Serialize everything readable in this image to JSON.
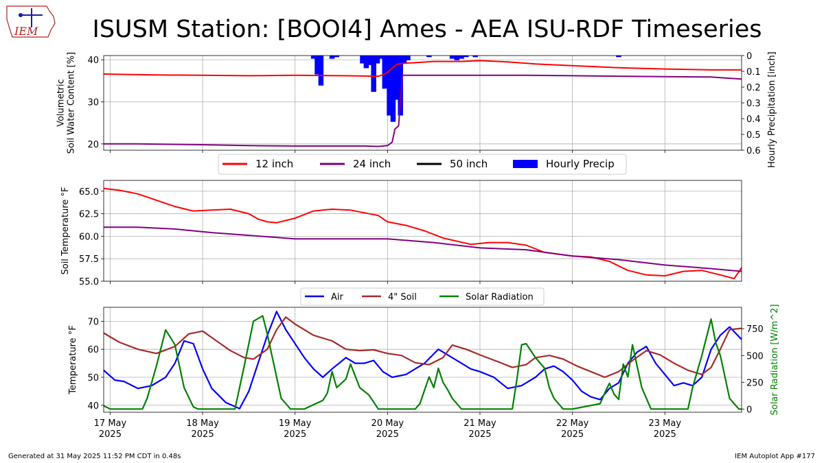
{
  "page": {
    "logo_text": "IEM",
    "title": "ISUSM Station: [BOOI4] Ames - AEA ISU-RDF Timeseries",
    "footer_left": "Generated at 31 May 2025 11:52 PM CDT in 0.48s",
    "footer_right": "IEM Autoplot App #177"
  },
  "colors": {
    "red": "#ff0000",
    "purple": "#800080",
    "black": "#000000",
    "blue_precip": "#0000ff",
    "air": "#0000ff",
    "soil4": "#a52a2a",
    "solar": "#008000"
  },
  "chart_data": [
    {
      "type": "line",
      "id": "soil-moisture",
      "ylabel": "Volumetric\nSoil Water Content [%]",
      "y2label": "Hourly Precipitation [inch]",
      "ylim": [
        18.5,
        41
      ],
      "yticks": [
        20,
        30,
        40
      ],
      "y2lim": [
        0.6,
        0
      ],
      "y2ticks": [
        "0",
        "0.1",
        "0.2",
        "0.3",
        "0.4",
        "0.5",
        "0.6"
      ],
      "y2tick_values": [
        0,
        0.1,
        0.2,
        0.3,
        0.4,
        0.5,
        0.6
      ],
      "grid": true,
      "legend_position": "below",
      "x_day_range": [
        16.93,
        23.83
      ],
      "series": [
        {
          "name": "12 inch",
          "color_key": "red",
          "x": [
            16.93,
            17.5,
            18.5,
            19.0,
            19.5,
            19.9,
            19.95,
            20.0,
            20.05,
            20.1,
            20.15,
            20.2,
            20.3,
            20.5,
            20.8,
            21.0,
            21.3,
            21.6,
            22.0,
            22.5,
            23.0,
            23.5,
            23.83
          ],
          "y": [
            36.6,
            36.4,
            36.2,
            36.3,
            36.2,
            36.1,
            36.4,
            37.0,
            38.0,
            38.9,
            39.1,
            39.2,
            39.3,
            39.6,
            39.6,
            39.8,
            39.5,
            39.0,
            38.6,
            38.1,
            37.8,
            37.6,
            37.6
          ]
        },
        {
          "name": "24 inch",
          "color_key": "purple",
          "x": [
            16.93,
            17.3,
            18.0,
            18.5,
            19.0,
            19.5,
            19.75,
            19.9,
            20.0,
            20.05,
            20.08,
            20.12,
            20.16,
            20.2,
            20.3,
            20.5,
            21.0,
            21.5,
            22.0,
            22.5,
            23.0,
            23.5,
            23.7,
            23.83
          ],
          "y": [
            20.0,
            20.0,
            19.8,
            19.6,
            19.5,
            19.5,
            19.5,
            19.4,
            19.6,
            20.4,
            23.5,
            24.3,
            36.3,
            36.3,
            36.3,
            36.3,
            36.3,
            36.3,
            36.2,
            36.1,
            36.0,
            35.9,
            35.6,
            35.4
          ]
        },
        {
          "name": "50 inch",
          "color_key": "black",
          "x": [],
          "y": []
        }
      ],
      "precip": {
        "name": "Hourly Precip",
        "x": [
          19.2,
          19.24,
          19.28,
          19.4,
          19.45,
          19.73,
          19.77,
          19.81,
          19.85,
          19.89,
          19.93,
          19.97,
          20.02,
          20.06,
          20.1,
          20.14,
          20.18,
          20.22,
          20.45,
          20.7,
          20.75,
          20.8,
          20.85,
          20.95,
          22.5
        ],
        "y": [
          0.02,
          0.12,
          0.19,
          0.02,
          0.01,
          0.05,
          0.08,
          0.06,
          0.23,
          0.05,
          0.02,
          0.21,
          0.38,
          0.42,
          0.28,
          0.38,
          0.05,
          0.03,
          0.01,
          0.02,
          0.03,
          0.02,
          0.01,
          0.01,
          0.01
        ]
      }
    },
    {
      "type": "line",
      "id": "soil-temperature",
      "ylabel": "Soil Temperature °F",
      "ylim": [
        55,
        66.2
      ],
      "yticks": [
        "55.0",
        "57.5",
        "60.0",
        "62.5",
        "65.0"
      ],
      "ytick_values": [
        55,
        57.5,
        60,
        62.5,
        65
      ],
      "grid": true,
      "series": [
        {
          "name": "12 inch",
          "color_key": "red",
          "x": [
            16.93,
            17.1,
            17.3,
            17.5,
            17.7,
            17.9,
            18.1,
            18.3,
            18.5,
            18.6,
            18.7,
            18.8,
            19.0,
            19.2,
            19.4,
            19.6,
            19.9,
            20.0,
            20.2,
            20.4,
            20.6,
            20.9,
            21.1,
            21.3,
            21.5,
            21.7,
            22.0,
            22.2,
            22.4,
            22.6,
            22.8,
            23.0,
            23.2,
            23.4,
            23.6,
            23.75,
            23.83
          ],
          "y": [
            65.3,
            65.1,
            64.7,
            64.0,
            63.3,
            62.8,
            62.9,
            63.0,
            62.5,
            61.9,
            61.6,
            61.5,
            62.0,
            62.8,
            63.0,
            62.9,
            62.3,
            61.6,
            61.2,
            60.6,
            59.8,
            59.1,
            59.3,
            59.3,
            59.0,
            58.2,
            57.8,
            57.7,
            57.2,
            56.2,
            55.7,
            55.6,
            56.1,
            56.2,
            55.7,
            55.3,
            56.5
          ]
        },
        {
          "name": "24 inch",
          "color_key": "purple",
          "x": [
            16.93,
            17.3,
            17.7,
            18.1,
            18.5,
            19.0,
            19.5,
            20.0,
            20.5,
            21.0,
            21.5,
            22.0,
            22.5,
            23.0,
            23.5,
            23.83
          ],
          "y": [
            61.0,
            61.0,
            60.8,
            60.4,
            60.1,
            59.7,
            59.7,
            59.7,
            59.3,
            58.7,
            58.5,
            57.8,
            57.4,
            56.8,
            56.4,
            56.1
          ]
        }
      ]
    },
    {
      "type": "line",
      "id": "air-soil-solar",
      "ylabel": "Temperature °F",
      "y2label": "Solar Radiation [W/m^2]",
      "ylim": [
        37.5,
        75
      ],
      "yticks": [
        40,
        50,
        60,
        70
      ],
      "y2lim": [
        -30,
        950
      ],
      "y2ticks": [
        0,
        250,
        500,
        750
      ],
      "grid": true,
      "legend_position": "top-center",
      "xtick_labels": [
        "17 May\n2025",
        "18 May\n2025",
        "19 May\n2025",
        "20 May\n2025",
        "21 May\n2025",
        "22 May\n2025",
        "23 May\n2025"
      ],
      "xtick_values": [
        17,
        18,
        19,
        20,
        21,
        22,
        23
      ],
      "series": [
        {
          "name": "Air",
          "color_key": "air",
          "x": [
            16.93,
            17.05,
            17.15,
            17.3,
            17.45,
            17.6,
            17.7,
            17.8,
            17.9,
            18.0,
            18.1,
            18.25,
            18.4,
            18.5,
            18.6,
            18.7,
            18.8,
            18.9,
            19.0,
            19.1,
            19.2,
            19.3,
            19.4,
            19.55,
            19.65,
            19.75,
            19.85,
            19.95,
            20.05,
            20.2,
            20.3,
            20.4,
            20.55,
            20.7,
            20.8,
            20.9,
            21.0,
            21.15,
            21.3,
            21.45,
            21.6,
            21.7,
            21.8,
            21.9,
            22.0,
            22.1,
            22.2,
            22.3,
            22.4,
            22.5,
            22.6,
            22.7,
            22.8,
            22.9,
            23.0,
            23.1,
            23.2,
            23.3,
            23.4,
            23.5,
            23.6,
            23.7,
            23.83
          ],
          "y": [
            52.5,
            49,
            48.5,
            46,
            47,
            50,
            55,
            63,
            62,
            53,
            46,
            41,
            38.8,
            45,
            55,
            65,
            73.5,
            67,
            62,
            57,
            53,
            50,
            53,
            57,
            55,
            55,
            56,
            52,
            50,
            51,
            53,
            55,
            60,
            57,
            55,
            53,
            52,
            50,
            46,
            47,
            50,
            53,
            54,
            52,
            49,
            45,
            43,
            42,
            46,
            48,
            55,
            59,
            61,
            55,
            51,
            47,
            48,
            47,
            50,
            60,
            65,
            68,
            63.5
          ]
        },
        {
          "name": "4\" Soil",
          "color_key": "soil4",
          "x": [
            16.93,
            17.1,
            17.3,
            17.5,
            17.7,
            17.85,
            18.0,
            18.15,
            18.3,
            18.45,
            18.55,
            18.7,
            18.8,
            18.9,
            19.0,
            19.2,
            19.4,
            19.55,
            19.7,
            19.85,
            20.0,
            20.15,
            20.3,
            20.45,
            20.6,
            20.7,
            20.85,
            21.0,
            21.2,
            21.35,
            21.5,
            21.6,
            21.75,
            21.9,
            22.05,
            22.2,
            22.35,
            22.5,
            22.65,
            22.8,
            22.95,
            23.1,
            23.25,
            23.4,
            23.5,
            23.6,
            23.7,
            23.83
          ],
          "y": [
            65.8,
            62.5,
            60,
            58.5,
            61,
            65.5,
            66.5,
            63,
            59.5,
            57,
            56.5,
            60,
            67,
            71.5,
            69,
            65,
            63,
            60,
            59.5,
            59.8,
            58.5,
            57.8,
            55.2,
            54.5,
            57,
            61.5,
            60,
            58,
            55.5,
            53.5,
            54.5,
            57,
            57.8,
            56.5,
            54,
            52,
            50,
            52,
            56,
            59.5,
            58,
            55,
            52.5,
            51,
            53.5,
            60,
            67,
            67.5
          ]
        },
        {
          "name": "Solar Radiation",
          "color_key": "solar",
          "axis": "y2",
          "x": [
            16.93,
            17.0,
            17.2,
            17.35,
            17.4,
            17.5,
            17.6,
            17.7,
            17.75,
            17.8,
            17.9,
            17.95,
            18.0,
            18.2,
            18.35,
            18.45,
            18.55,
            18.65,
            18.7,
            18.75,
            18.8,
            18.85,
            18.95,
            19.05,
            19.1,
            19.3,
            19.35,
            19.4,
            19.45,
            19.55,
            19.6,
            19.7,
            19.8,
            19.9,
            20.0,
            20.3,
            20.35,
            20.45,
            20.5,
            20.55,
            20.6,
            20.65,
            20.7,
            20.8,
            20.85,
            21.0,
            21.2,
            21.35,
            21.4,
            21.45,
            21.5,
            21.6,
            21.7,
            21.75,
            21.8,
            21.9,
            21.95,
            22.0,
            22.3,
            22.35,
            22.4,
            22.45,
            22.5,
            22.55,
            22.6,
            22.65,
            22.7,
            22.75,
            22.8,
            22.85,
            22.95,
            23.0,
            23.25,
            23.3,
            23.4,
            23.5,
            23.55,
            23.6,
            23.65,
            23.7,
            23.75,
            23.8,
            23.83
          ],
          "y": [
            30,
            0,
            0,
            0,
            100,
            400,
            740,
            600,
            400,
            200,
            20,
            0,
            0,
            0,
            0,
            400,
            820,
            870,
            700,
            500,
            300,
            100,
            0,
            0,
            0,
            80,
            150,
            350,
            200,
            280,
            420,
            200,
            130,
            0,
            0,
            0,
            50,
            300,
            200,
            380,
            250,
            180,
            100,
            0,
            0,
            0,
            0,
            0,
            280,
            600,
            610,
            480,
            380,
            200,
            100,
            0,
            0,
            0,
            50,
            150,
            240,
            140,
            90,
            420,
            300,
            600,
            400,
            200,
            100,
            0,
            0,
            0,
            0,
            200,
            500,
            840,
            620,
            500,
            300,
            100,
            50,
            0,
            0
          ]
        }
      ]
    }
  ]
}
